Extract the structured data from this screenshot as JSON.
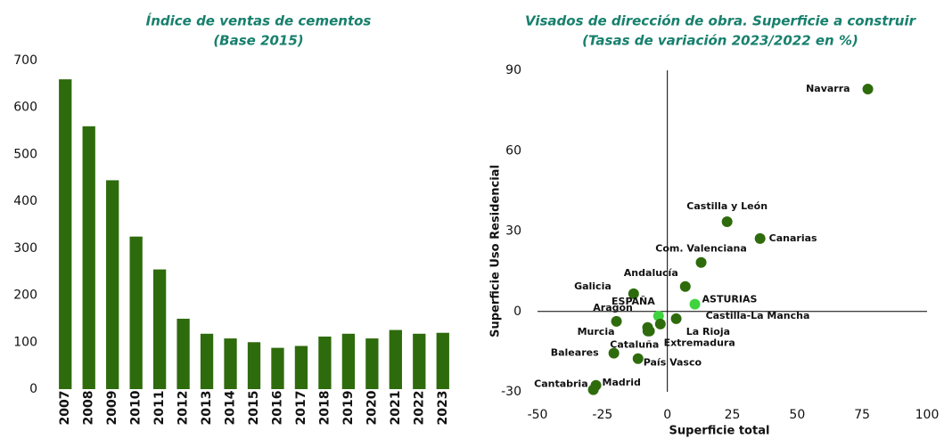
{
  "chart_data": [
    {
      "type": "bar",
      "title": "Índice de ventas de cementos",
      "subtitle": "(Base 2015)",
      "categories": [
        "2007",
        "2008",
        "2009",
        "2010",
        "2011",
        "2012",
        "2013",
        "2014",
        "2015",
        "2016",
        "2017",
        "2018",
        "2019",
        "2020",
        "2021",
        "2022",
        "2023"
      ],
      "values": [
        660,
        560,
        445,
        325,
        255,
        150,
        118,
        108,
        100,
        88,
        92,
        112,
        118,
        108,
        126,
        118,
        120
      ],
      "color": "#2e6b0c",
      "ylim": [
        0,
        700
      ],
      "yticks": [
        0,
        100,
        200,
        300,
        400,
        500,
        600,
        700
      ],
      "grid": false
    },
    {
      "type": "scatter",
      "title": "Visados de dirección de obra. Superficie a construir",
      "subtitle": "(Tasas de variación 2023/2022 en %)",
      "x_label": "Superficie total",
      "y_label": "Superficie Uso Residencial",
      "labels": [
        "Navarra",
        "Castilla y León",
        "Canarias",
        "Com. Valenciana",
        "Andalucía",
        "Galicia",
        "ASTURIAS",
        "ESPAÑA",
        "Aragón",
        "Castilla-La Mancha",
        "La Rioja",
        "Murcia",
        "Extremadura",
        "Cataluña",
        "Baleares",
        "País Vasco",
        "Madrid",
        "Cantabria"
      ],
      "x": [
        77.2,
        23,
        35.7,
        13,
        6.9,
        -13,
        10.6,
        -3.4,
        -19.6,
        3.4,
        -2.7,
        -7.6,
        -6.9,
        -7.5,
        -20.6,
        -11.3,
        -27.5,
        -28.5
      ],
      "y": [
        83,
        33.5,
        27.2,
        18.3,
        9.3,
        6.6,
        2.7,
        -1.7,
        -3.7,
        -2.7,
        -4.7,
        -6,
        -7.3,
        -7.3,
        -15.6,
        -17.6,
        -27.6,
        -29.2
      ],
      "colors": [
        "#2e6b0c",
        "#2e6b0c",
        "#2e6b0c",
        "#2e6b0c",
        "#2e6b0c",
        "#2e6b0c",
        "#3fd43f",
        "#3fd43f",
        "#2e6b0c",
        "#2e6b0c",
        "#2e6b0c",
        "#2e6b0c",
        "#2e6b0c",
        "#2e6b0c",
        "#2e6b0c",
        "#2e6b0c",
        "#2e6b0c",
        "#2e6b0c"
      ],
      "xlim": [
        -50,
        100
      ],
      "xticks": [
        -50,
        -25,
        0,
        25,
        50,
        75,
        100
      ],
      "ylim": [
        -30,
        90
      ],
      "yticks": [
        -30,
        0,
        30,
        60,
        90
      ]
    }
  ]
}
